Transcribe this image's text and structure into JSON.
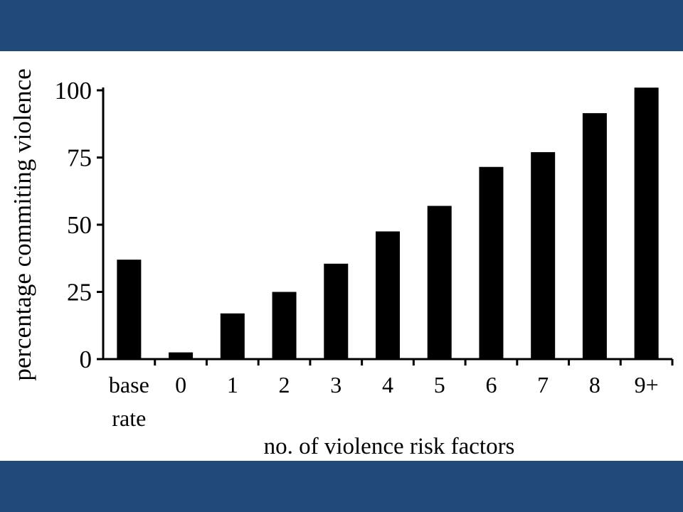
{
  "colors": {
    "band": "#214a7b",
    "bar": "#000000",
    "background": "#ffffff"
  },
  "chart_data": {
    "type": "bar",
    "categories": [
      "base rate",
      "0",
      "1",
      "2",
      "3",
      "4",
      "5",
      "6",
      "7",
      "8",
      "9+"
    ],
    "category_lines": [
      [
        "base",
        "rate"
      ],
      [
        "0"
      ],
      [
        "1"
      ],
      [
        "2"
      ],
      [
        "3"
      ],
      [
        "4"
      ],
      [
        "5"
      ],
      [
        "6"
      ],
      [
        "7"
      ],
      [
        "8"
      ],
      [
        "9+"
      ]
    ],
    "values": [
      37,
      2.5,
      17,
      25,
      35.5,
      47.5,
      57,
      71.5,
      77,
      91.5,
      101
    ],
    "title": "",
    "xlabel": "no. of violence risk factors",
    "ylabel": "percentage commiting violence",
    "ylim": [
      0,
      100
    ],
    "yticks": [
      0,
      25,
      50,
      75,
      100
    ],
    "grid": false,
    "legend": "none"
  }
}
